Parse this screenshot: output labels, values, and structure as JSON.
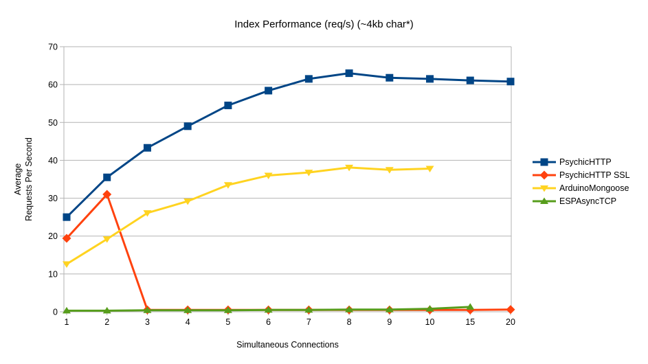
{
  "chart_data": {
    "type": "line",
    "title": "Index Performance (req/s) (~4kb char*)",
    "xlabel": "Simultaneous Connections",
    "ylabel": "Average\nRequests Per Second",
    "categories": [
      "1",
      "2",
      "3",
      "4",
      "5",
      "6",
      "7",
      "8",
      "9",
      "10",
      "15",
      "20"
    ],
    "ylim": [
      0,
      70
    ],
    "y_ticks": [
      0,
      10,
      20,
      30,
      40,
      50,
      60,
      70
    ],
    "grid": "horizontal",
    "legend_position": "right",
    "series": [
      {
        "name": "PsychicHTTP",
        "color": "#004586",
        "marker": "square",
        "values": [
          25,
          35.5,
          43.3,
          49,
          54.5,
          58.4,
          61.5,
          63,
          61.8,
          61.5,
          61.1,
          60.8
        ]
      },
      {
        "name": "PsychicHTTP SSL",
        "color": "#FF420E",
        "marker": "diamond",
        "values": [
          19.4,
          31,
          0.5,
          0.5,
          0.5,
          0.5,
          0.5,
          0.5,
          0.5,
          0.5,
          0.5,
          0.6
        ]
      },
      {
        "name": "ArduinoMongoose",
        "color": "#FFD320",
        "marker": "triangle-down",
        "values": [
          12.6,
          19.2,
          26.1,
          29.2,
          33.5,
          36,
          36.8,
          38.1,
          37.5,
          37.8
        ]
      },
      {
        "name": "ESPAsyncTCP",
        "color": "#579D1C",
        "marker": "triangle-up",
        "values": [
          0.3,
          0.3,
          0.4,
          0.4,
          0.4,
          0.5,
          0.5,
          0.6,
          0.6,
          0.8,
          1.3
        ]
      }
    ],
    "colors": {
      "grid": "#b3b3b3",
      "axis": "#b3b3b3",
      "text": "#000000",
      "background": "#ffffff"
    }
  }
}
